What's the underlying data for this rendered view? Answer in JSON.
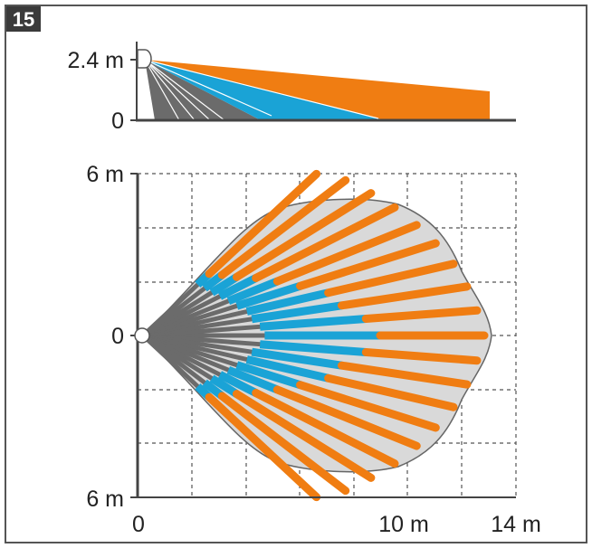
{
  "figure_number": "15",
  "colors": {
    "orange": "#f07d12",
    "blue": "#1aa3d6",
    "gray": "#6b6b6b",
    "coverage": "#d9d9d9",
    "frame": "#555555",
    "badge": "#3a3a3a"
  },
  "side_view": {
    "y_tick_top": "2.4 m",
    "y_tick_bottom": "0"
  },
  "top_view": {
    "y_tick_top": "6 m",
    "y_tick_mid": "0",
    "y_tick_bottom": "6 m",
    "x_tick_0": "0",
    "x_tick_10": "10 m",
    "x_tick_14": "14 m"
  },
  "sensor_icon": "pir-sensor-icon"
}
